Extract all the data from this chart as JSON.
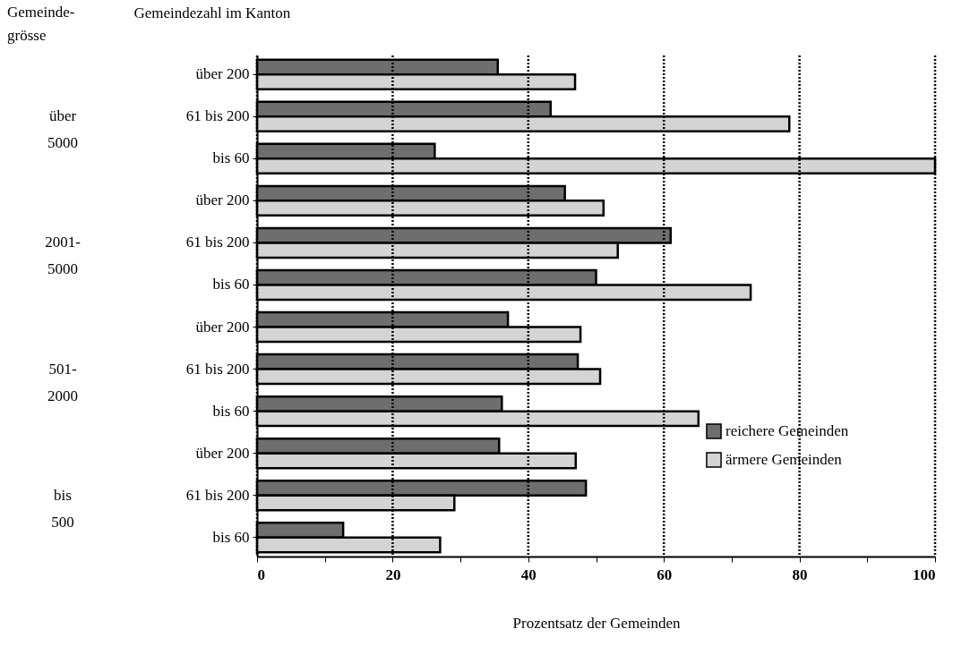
{
  "chart_data": {
    "type": "bar",
    "orientation": "horizontal",
    "xlabel": "Prozentsatz der Gemeinden",
    "ylabel": "Gemeindezahl im Kanton",
    "categories": [
      "über 200",
      "61 bis 200",
      "bis 60",
      "über 200",
      "61 bis 200",
      "bis 60",
      "über 200",
      "61 bis 200",
      "bis 60",
      "über 200",
      "61 bis 200",
      "bis 60"
    ],
    "series": [
      {
        "name": "reichere Gemeinden",
        "color": "#6e6e6e",
        "values": [
          35.5,
          43.3,
          26.2,
          45.4,
          61.0,
          50.0,
          37.0,
          47.3,
          36.1,
          35.7,
          48.5,
          12.7
        ]
      },
      {
        "name": "ärmere Gemeinden",
        "color": "#d4d4d4",
        "values": [
          46.9,
          78.5,
          100,
          51.1,
          53.2,
          72.8,
          47.7,
          50.6,
          65.1,
          47.0,
          29.1,
          27.0
        ]
      }
    ],
    "annotations": [
      "Gemeinde-\ngrösse",
      "über\n5000",
      "2001-\n5000",
      "501-\n2000",
      "bis\n500"
    ],
    "xlim": [
      0,
      100
    ],
    "xticks": [
      0,
      {
        "value": 10,
        "label": null
      },
      20,
      {
        "value": 30,
        "label": null
      },
      40,
      {
        "value": 50,
        "label": null
      },
      60,
      {
        "value": 70,
        "label": null
      },
      80,
      {
        "value": 90,
        "label": null
      },
      100
    ],
    "grid": "x",
    "legend": "bottom right"
  }
}
